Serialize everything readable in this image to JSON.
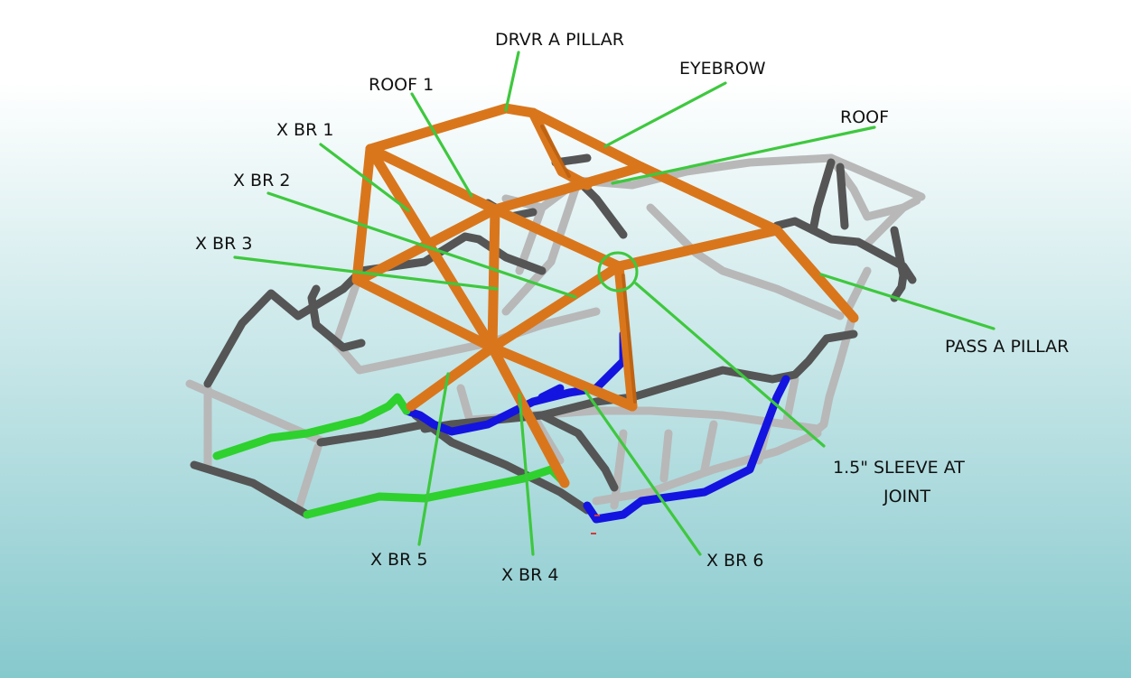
{
  "colors": {
    "background_top": "#ffffff",
    "background_bottom": "#86c9cd",
    "cage_orange": "#d9761c",
    "cage_orange_dark": "#a8540d",
    "tube_light_grey": "#b8b8b8",
    "tube_dark_grey": "#555555",
    "tube_blue": "#1414e0",
    "tube_green": "#2ed12e",
    "leader_green": "#3ec83e"
  },
  "labels": {
    "drvr_a_pillar": "DRVR A PILLAR",
    "eyebrow": "EYEBROW",
    "roof_1": "ROOF 1",
    "roof": "ROOF",
    "x_br_1": "X BR 1",
    "x_br_2": "X BR 2",
    "x_br_3": "X BR 3",
    "pass_a_pillar": "PASS A PILLAR",
    "sleeve_line1": "1.5\" SLEEVE AT",
    "sleeve_line2": "JOINT",
    "x_br_5": "X BR 5",
    "x_br_4": "X BR 4",
    "x_br_6": "X BR 6"
  }
}
